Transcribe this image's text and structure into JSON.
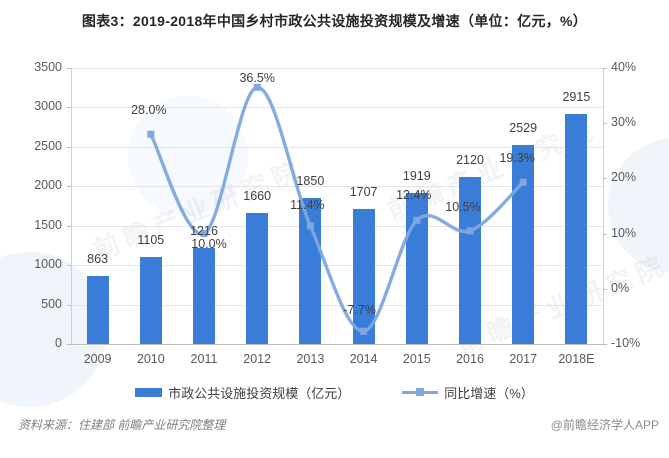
{
  "title": "图表3：2019-2018年中国乡村市政公共设施投资规模及增速（单位：亿元，%）",
  "chart_data": {
    "type": "bar",
    "subtype": "bar+line combo, dual axis",
    "categories": [
      "2009",
      "2010",
      "2011",
      "2012",
      "2013",
      "2014",
      "2015",
      "2016",
      "2017",
      "2018E"
    ],
    "series": [
      {
        "name": "市政公共设施投资规模（亿元）",
        "type": "bar",
        "axis": "left",
        "values": [
          863,
          1105,
          1216,
          1660,
          1850,
          1707,
          1919,
          2120,
          2529,
          2915
        ]
      },
      {
        "name": "同比增速（%）",
        "type": "line",
        "axis": "right",
        "values": [
          null,
          28.0,
          10.0,
          36.5,
          11.4,
          -7.7,
          12.4,
          10.5,
          19.3,
          null
        ],
        "point_labels": [
          "",
          "28.0%",
          "10.0%",
          "36.5%",
          "11.4%",
          "-7.7%",
          "12.4%",
          "10.5%",
          "19.3%",
          ""
        ]
      }
    ],
    "left_axis": {
      "ticks": [
        "3500",
        "3000",
        "2500",
        "2000",
        "1500",
        "1000",
        "500",
        "0"
      ],
      "min": 0,
      "max": 3500
    },
    "right_axis": {
      "ticks": [
        "40%",
        "30%",
        "20%",
        "10%",
        "0%",
        "-10%"
      ],
      "min": -10,
      "max": 40
    },
    "legend_position": "bottom",
    "grid": "horizontal",
    "colors": {
      "bar": "#3a7dd8",
      "line": "#7fa7df"
    }
  },
  "footer": {
    "source": "资料来源：住建部  前瞻产业研究院整理",
    "credit": "@前瞻经济学人APP"
  },
  "watermark": {
    "text": "前瞻产业研究院"
  }
}
